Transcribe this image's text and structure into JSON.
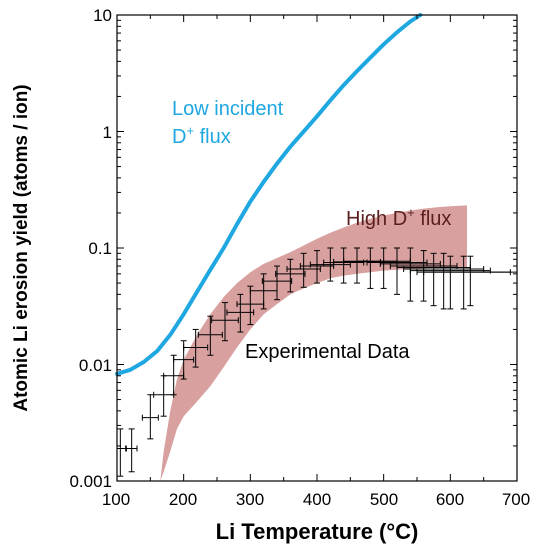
{
  "chart_data": {
    "type": "line",
    "xlabel": "Li Temperature (°C)",
    "ylabel": "Atomic Li erosion yield (atoms / ion)",
    "xlim": [
      100,
      700
    ],
    "ylim": [
      0.001,
      10
    ],
    "y_scale": "log",
    "x_ticks": [
      "100",
      "200",
      "300",
      "400",
      "500",
      "600",
      "700"
    ],
    "y_ticks": [
      "0.001",
      "0.01",
      "0.1",
      "1",
      "10"
    ],
    "colors": {
      "low_flux": "#1ea7e1",
      "high_flux_band": "#d9a0a0",
      "high_flux_text": "#5a1e1e",
      "data": "#000000"
    },
    "annotations": {
      "low_flux_line1": "Low incident",
      "low_flux_line2_prefix": "D",
      "low_flux_line2_suffix": " flux",
      "high_flux_prefix": "High D",
      "high_flux_suffix": " flux",
      "superscript": "+",
      "experimental": "Experimental  Data"
    },
    "low_flux_curve": {
      "x": [
        100,
        120,
        140,
        160,
        180,
        200,
        220,
        240,
        260,
        280,
        300,
        320,
        340,
        360,
        380,
        400,
        420,
        440,
        460,
        480,
        500,
        520,
        540,
        555
      ],
      "y": [
        0.0083,
        0.009,
        0.0105,
        0.013,
        0.018,
        0.027,
        0.042,
        0.065,
        0.1,
        0.16,
        0.25,
        0.37,
        0.53,
        0.74,
        1.0,
        1.35,
        1.85,
        2.5,
        3.3,
        4.3,
        5.6,
        7.1,
        8.8,
        10
      ]
    },
    "high_flux_band": {
      "x": [
        165,
        170,
        180,
        190,
        200,
        220,
        240,
        260,
        280,
        300,
        320,
        340,
        360,
        380,
        400,
        420,
        440,
        460,
        480,
        500,
        520,
        540,
        560,
        580,
        600,
        625
      ],
      "lower": [
        0.001,
        0.0012,
        0.0018,
        0.0028,
        0.0036,
        0.0048,
        0.0065,
        0.0095,
        0.014,
        0.02,
        0.027,
        0.033,
        0.04,
        0.045,
        0.05,
        0.055,
        0.058,
        0.06,
        0.062,
        0.064,
        0.065,
        0.066,
        0.067,
        0.068,
        0.068,
        0.068
      ],
      "upper": [
        0.001,
        0.0018,
        0.004,
        0.0075,
        0.011,
        0.018,
        0.027,
        0.038,
        0.05,
        0.062,
        0.073,
        0.082,
        0.092,
        0.105,
        0.12,
        0.135,
        0.15,
        0.165,
        0.178,
        0.19,
        0.2,
        0.21,
        0.218,
        0.224,
        0.228,
        0.232
      ]
    },
    "experimental_data": [
      {
        "x": 105,
        "y": 0.0019,
        "xerr": 8,
        "ylo": 0.0011,
        "yhi": 0.0028
      },
      {
        "x": 122,
        "y": 0.0019,
        "xerr": 8,
        "ylo": 0.0012,
        "yhi": 0.0028
      },
      {
        "x": 150,
        "y": 0.0035,
        "xerr": 12,
        "ylo": 0.0023,
        "yhi": 0.0055
      },
      {
        "x": 170,
        "y": 0.0055,
        "xerr": 15,
        "ylo": 0.0036,
        "yhi": 0.008
      },
      {
        "x": 185,
        "y": 0.008,
        "xerr": 15,
        "ylo": 0.0055,
        "yhi": 0.012
      },
      {
        "x": 200,
        "y": 0.011,
        "xerr": 15,
        "ylo": 0.0075,
        "yhi": 0.016
      },
      {
        "x": 218,
        "y": 0.014,
        "xerr": 18,
        "ylo": 0.0095,
        "yhi": 0.02
      },
      {
        "x": 240,
        "y": 0.018,
        "xerr": 18,
        "ylo": 0.012,
        "yhi": 0.026
      },
      {
        "x": 262,
        "y": 0.024,
        "xerr": 20,
        "ylo": 0.016,
        "yhi": 0.034
      },
      {
        "x": 285,
        "y": 0.028,
        "xerr": 20,
        "ylo": 0.019,
        "yhi": 0.04
      },
      {
        "x": 300,
        "y": 0.033,
        "xerr": 20,
        "ylo": 0.022,
        "yhi": 0.047
      },
      {
        "x": 320,
        "y": 0.043,
        "xerr": 20,
        "ylo": 0.03,
        "yhi": 0.06
      },
      {
        "x": 340,
        "y": 0.052,
        "xerr": 22,
        "ylo": 0.036,
        "yhi": 0.07
      },
      {
        "x": 360,
        "y": 0.06,
        "xerr": 22,
        "ylo": 0.042,
        "yhi": 0.08
      },
      {
        "x": 380,
        "y": 0.066,
        "xerr": 25,
        "ylo": 0.046,
        "yhi": 0.09
      },
      {
        "x": 400,
        "y": 0.07,
        "xerr": 25,
        "ylo": 0.05,
        "yhi": 0.095
      },
      {
        "x": 420,
        "y": 0.072,
        "xerr": 30,
        "ylo": 0.052,
        "yhi": 0.1
      },
      {
        "x": 440,
        "y": 0.075,
        "xerr": 30,
        "ylo": 0.05,
        "yhi": 0.1
      },
      {
        "x": 460,
        "y": 0.076,
        "xerr": 35,
        "ylo": 0.05,
        "yhi": 0.1
      },
      {
        "x": 480,
        "y": 0.077,
        "xerr": 40,
        "ylo": 0.045,
        "yhi": 0.1
      },
      {
        "x": 500,
        "y": 0.077,
        "xerr": 40,
        "ylo": 0.045,
        "yhi": 0.1
      },
      {
        "x": 520,
        "y": 0.075,
        "xerr": 45,
        "ylo": 0.04,
        "yhi": 0.1
      },
      {
        "x": 540,
        "y": 0.073,
        "xerr": 45,
        "ylo": 0.035,
        "yhi": 0.1
      },
      {
        "x": 560,
        "y": 0.07,
        "xerr": 50,
        "ylo": 0.035,
        "yhi": 0.095
      },
      {
        "x": 575,
        "y": 0.068,
        "xerr": 55,
        "ylo": 0.032,
        "yhi": 0.09
      },
      {
        "x": 590,
        "y": 0.066,
        "xerr": 60,
        "ylo": 0.03,
        "yhi": 0.09
      },
      {
        "x": 600,
        "y": 0.064,
        "xerr": 60,
        "ylo": 0.03,
        "yhi": 0.085
      },
      {
        "x": 620,
        "y": 0.062,
        "xerr": 70,
        "ylo": 0.03,
        "yhi": 0.085
      },
      {
        "x": 630,
        "y": 0.062,
        "xerr": 70,
        "ylo": 0.032,
        "yhi": 0.085
      }
    ]
  }
}
